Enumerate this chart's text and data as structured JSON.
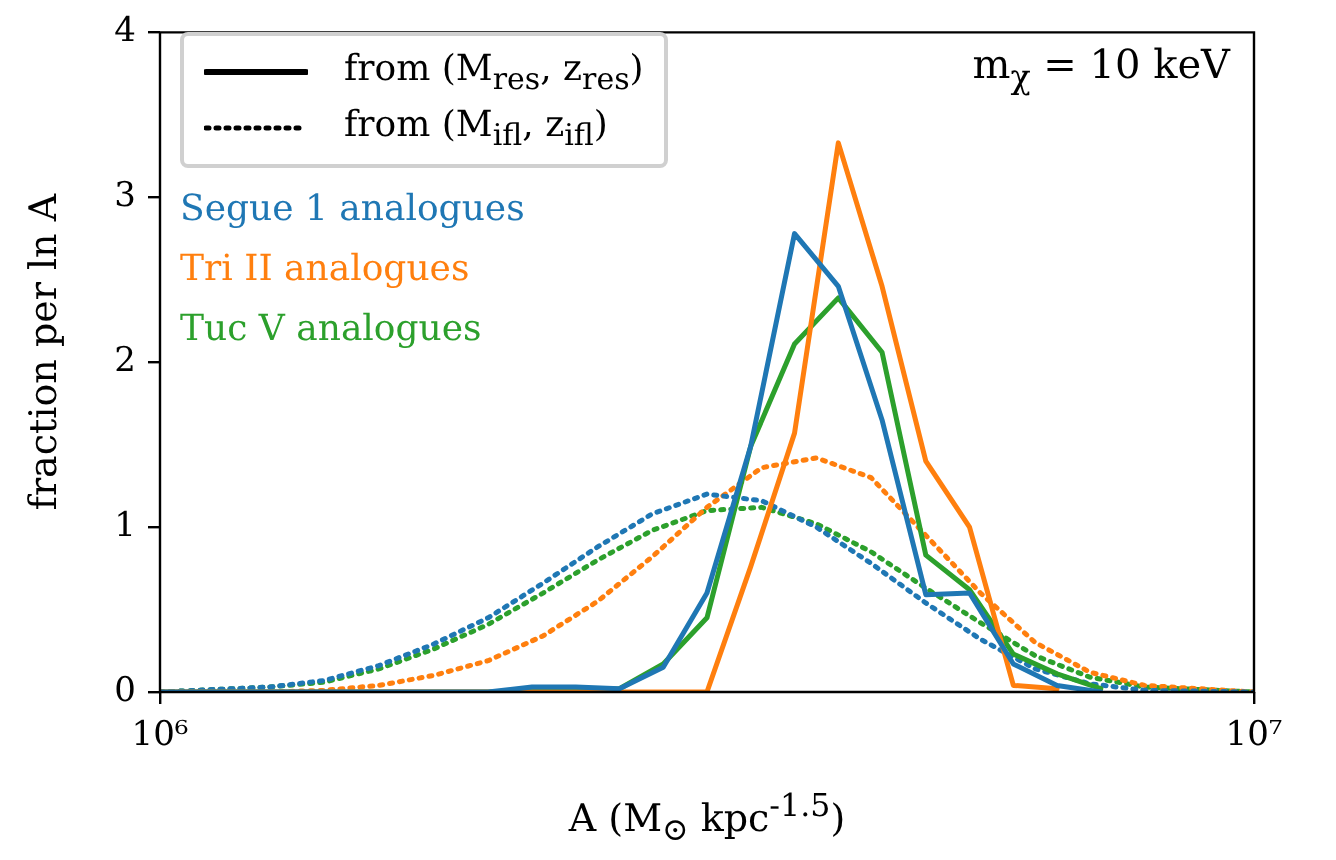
{
  "chart_data": {
    "type": "line",
    "xlabel": "A (M$_{⊙}$ kpc$^{-1.5}$)",
    "ylabel": "fraction per ln A",
    "log": "x",
    "xlim": [
      1000000,
      10000000
    ],
    "xticks": [
      {
        "value": 1000000,
        "label": "10⁶"
      },
      {
        "value": 10000000,
        "label": "10⁷"
      }
    ],
    "ylim": [
      0,
      4
    ],
    "yticks": [
      0,
      1,
      2,
      3,
      4
    ],
    "legend": "top left",
    "annotations": [
      "m$_{χ}$ = 10 keV",
      "from (M$_{res}$, z$_{res}$)",
      "from (M$_{ifl}$, z$_{ifl}$)"
    ],
    "series": [
      {
        "name": "Segue 1 analogues",
        "color": "#1f77b4",
        "line_style": "solid",
        "x": [
          1000000,
          1995000,
          2188000,
          2399000,
          2630000,
          2884000,
          3162000,
          3467000,
          3802000,
          4169000,
          4571000,
          5012000,
          5495000,
          6026000,
          6607000,
          7244000
        ],
        "values": [
          0,
          0,
          0.03,
          0.03,
          0.02,
          0.15,
          0.6,
          1.49,
          2.78,
          2.46,
          1.65,
          0.59,
          0.6,
          0.17,
          0.04,
          0
        ]
      },
      {
        "name": "Tri II analogues",
        "color": "#ff7f0e",
        "line_style": "solid",
        "x": [
          1000000,
          1995000,
          2188000,
          2399000,
          2630000,
          2884000,
          3162000,
          3467000,
          3802000,
          4169000,
          4571000,
          5012000,
          5495000,
          6026000,
          6607000
        ],
        "values": [
          0,
          0,
          0,
          0,
          0,
          0,
          0,
          0.76,
          1.57,
          3.33,
          2.46,
          1.4,
          1.0,
          0.04,
          0.02
        ]
      },
      {
        "name": "Tuc V analogues",
        "color": "#2ca02c",
        "line_style": "solid",
        "x": [
          1000000,
          1995000,
          2188000,
          2399000,
          2630000,
          2884000,
          3162000,
          3467000,
          3802000,
          4169000,
          4571000,
          5012000,
          5495000,
          6026000,
          6607000,
          7244000
        ],
        "values": [
          0,
          0,
          0.01,
          0.01,
          0.02,
          0.17,
          0.45,
          1.49,
          2.11,
          2.39,
          2.06,
          0.83,
          0.62,
          0.23,
          0.11,
          0.02
        ]
      },
      {
        "color": "#1f77b4",
        "line_style": "dotted",
        "x": [
          1000000,
          1259000,
          1413000,
          1585000,
          1778000,
          1995000,
          2239000,
          2512000,
          2818000,
          3162000,
          3548000,
          3981000,
          4467000,
          5012000,
          5623000,
          6310000,
          7079000,
          7943000,
          10000000
        ],
        "values": [
          0,
          0.03,
          0.07,
          0.16,
          0.29,
          0.45,
          0.66,
          0.88,
          1.08,
          1.2,
          1.16,
          1.0,
          0.78,
          0.54,
          0.32,
          0.14,
          0.05,
          0.01,
          0
        ]
      },
      {
        "color": "#ff7f0e",
        "line_style": "dotted",
        "x": [
          1000000,
          1259000,
          1413000,
          1585000,
          1778000,
          1995000,
          2239000,
          2512000,
          2818000,
          3162000,
          3548000,
          3981000,
          4467000,
          5012000,
          5623000,
          6310000,
          7079000,
          7943000,
          10000000
        ],
        "values": [
          0,
          0,
          0.01,
          0.04,
          0.1,
          0.19,
          0.34,
          0.55,
          0.82,
          1.12,
          1.36,
          1.42,
          1.3,
          0.95,
          0.6,
          0.3,
          0.12,
          0.04,
          0
        ]
      },
      {
        "color": "#2ca02c",
        "line_style": "dotted",
        "x": [
          1000000,
          1259000,
          1413000,
          1585000,
          1778000,
          1995000,
          2239000,
          2512000,
          2818000,
          3162000,
          3548000,
          3981000,
          4467000,
          5012000,
          5623000,
          6310000,
          7079000,
          7943000,
          10000000
        ],
        "values": [
          0,
          0.03,
          0.06,
          0.14,
          0.26,
          0.41,
          0.6,
          0.8,
          0.98,
          1.1,
          1.12,
          1.02,
          0.85,
          0.63,
          0.42,
          0.22,
          0.09,
          0.03,
          0
        ]
      }
    ]
  }
}
